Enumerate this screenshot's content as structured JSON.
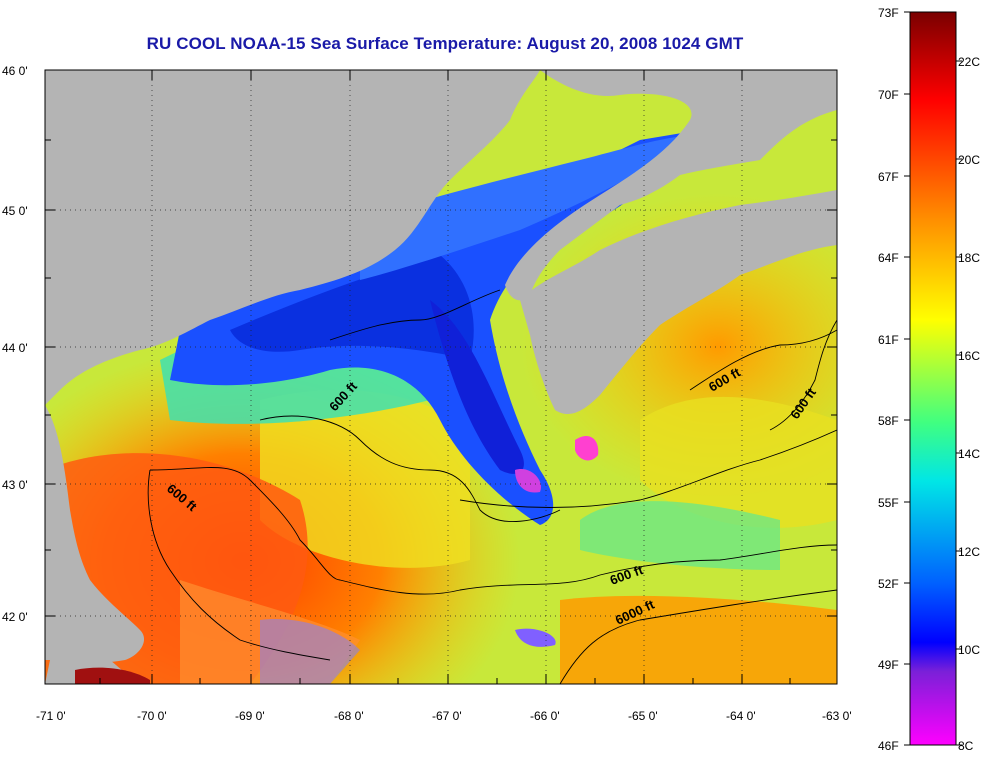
{
  "title": "RU COOL  NOAA-15  Sea Surface Temperature:  August 20, 2008 1024 GMT",
  "lat_ticks": [
    "46 0'",
    "45 0'",
    "44 0'",
    "43 0'",
    "42 0'"
  ],
  "lon_ticks": [
    "-71 0'",
    "-70 0'",
    "-69 0'",
    "-68 0'",
    "-67 0'",
    "-66 0'",
    "-65 0'",
    "-64 0'",
    "-63 0'"
  ],
  "contour_labels": [
    "600 ft",
    "600 ft",
    "600 ft",
    "600 ft",
    "600 ft",
    "6000 ft"
  ],
  "colorbar": {
    "fahrenheit": [
      "73F",
      "70F",
      "67F",
      "64F",
      "61F",
      "58F",
      "55F",
      "52F",
      "49F",
      "46F"
    ],
    "celsius": [
      "22C",
      "20C",
      "18C",
      "16C",
      "14C",
      "12C",
      "10C",
      "8C"
    ],
    "colors": [
      "#8b0000",
      "#ff0000",
      "#ff8c00",
      "#ffff00",
      "#00e6e6",
      "#0000ff",
      "#9932cc",
      "#ff00ff"
    ]
  },
  "colors": {
    "land": "#b4b4b4",
    "title": "#1a1aa8"
  }
}
